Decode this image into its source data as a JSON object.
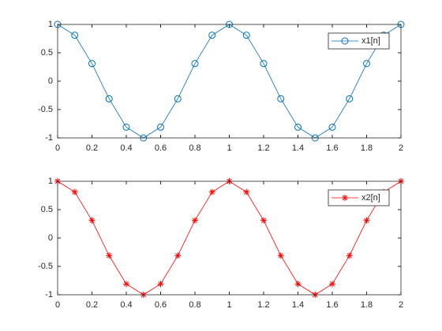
{
  "chart_data": [
    {
      "type": "line",
      "x": [
        0,
        0.1,
        0.2,
        0.3,
        0.4,
        0.5,
        0.6,
        0.7,
        0.8,
        0.9,
        1,
        1.1,
        1.2,
        1.3,
        1.4,
        1.5,
        1.6,
        1.7,
        1.8,
        1.9,
        2
      ],
      "series": [
        {
          "name": "x1[n]",
          "color": "#0072bd",
          "marker": "o",
          "values": [
            1,
            0.81,
            0.31,
            -0.31,
            -0.81,
            -1,
            -0.81,
            -0.31,
            0.31,
            0.81,
            1,
            0.81,
            0.31,
            -0.31,
            -0.81,
            -1,
            -0.81,
            -0.31,
            0.31,
            0.81,
            1
          ]
        }
      ],
      "xlim": [
        0,
        2
      ],
      "xticks": [
        0,
        0.2,
        0.4,
        0.6,
        0.8,
        1,
        1.2,
        1.4,
        1.6,
        1.8,
        2
      ],
      "ylim": [
        -1,
        1
      ],
      "yticks": [
        -1,
        -0.5,
        0,
        0.5,
        1
      ],
      "legend": "northeast"
    },
    {
      "type": "line",
      "x": [
        0,
        0.1,
        0.2,
        0.3,
        0.4,
        0.5,
        0.6,
        0.7,
        0.8,
        0.9,
        1,
        1.1,
        1.2,
        1.3,
        1.4,
        1.5,
        1.6,
        1.7,
        1.8,
        1.9,
        2
      ],
      "series": [
        {
          "name": "x2[n]",
          "color": "#ff0000",
          "marker": "*",
          "values": [
            1,
            0.81,
            0.31,
            -0.31,
            -0.81,
            -1,
            -0.81,
            -0.31,
            0.31,
            0.81,
            1,
            0.81,
            0.31,
            -0.31,
            -0.81,
            -1,
            -0.81,
            -0.31,
            0.31,
            0.81,
            1
          ]
        }
      ],
      "xlim": [
        0,
        2
      ],
      "xticks": [
        0,
        0.2,
        0.4,
        0.6,
        0.8,
        1,
        1.2,
        1.4,
        1.6,
        1.8,
        2
      ],
      "ylim": [
        -1,
        1
      ],
      "yticks": [
        -1,
        -0.5,
        0,
        0.5,
        1
      ],
      "legend": "northeast"
    }
  ]
}
